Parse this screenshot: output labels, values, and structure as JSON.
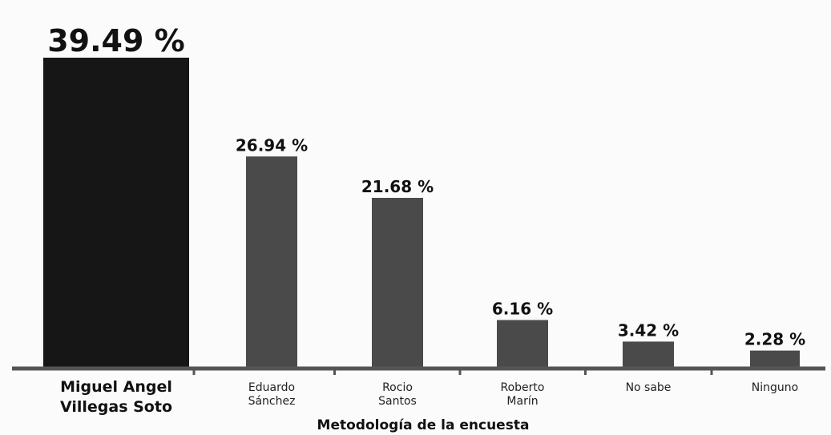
{
  "chart_data": {
    "type": "bar",
    "categories": [
      [
        "Miguel Angel",
        "Villegas Soto"
      ],
      [
        "Eduardo",
        "Sánchez"
      ],
      [
        "Rocio",
        "Santos"
      ],
      [
        "Roberto",
        "Marín"
      ],
      [
        "No sabe"
      ],
      [
        "Ninguno"
      ]
    ],
    "values": [
      39.49,
      26.94,
      21.68,
      6.16,
      3.42,
      2.28
    ],
    "value_labels": [
      "39.49 %",
      "26.94 %",
      "21.68 %",
      "6.16 %",
      "3.42 %",
      "2.28 %"
    ],
    "bar_colors": [
      "#161616",
      "#4a4a4a",
      "#4a4a4a",
      "#4a4a4a",
      "#4a4a4a",
      "#4a4a4a"
    ],
    "axis_color": "#555555",
    "xlabel": "Metodología de la encuesta",
    "ylim": [
      0,
      40
    ],
    "grid": false
  }
}
